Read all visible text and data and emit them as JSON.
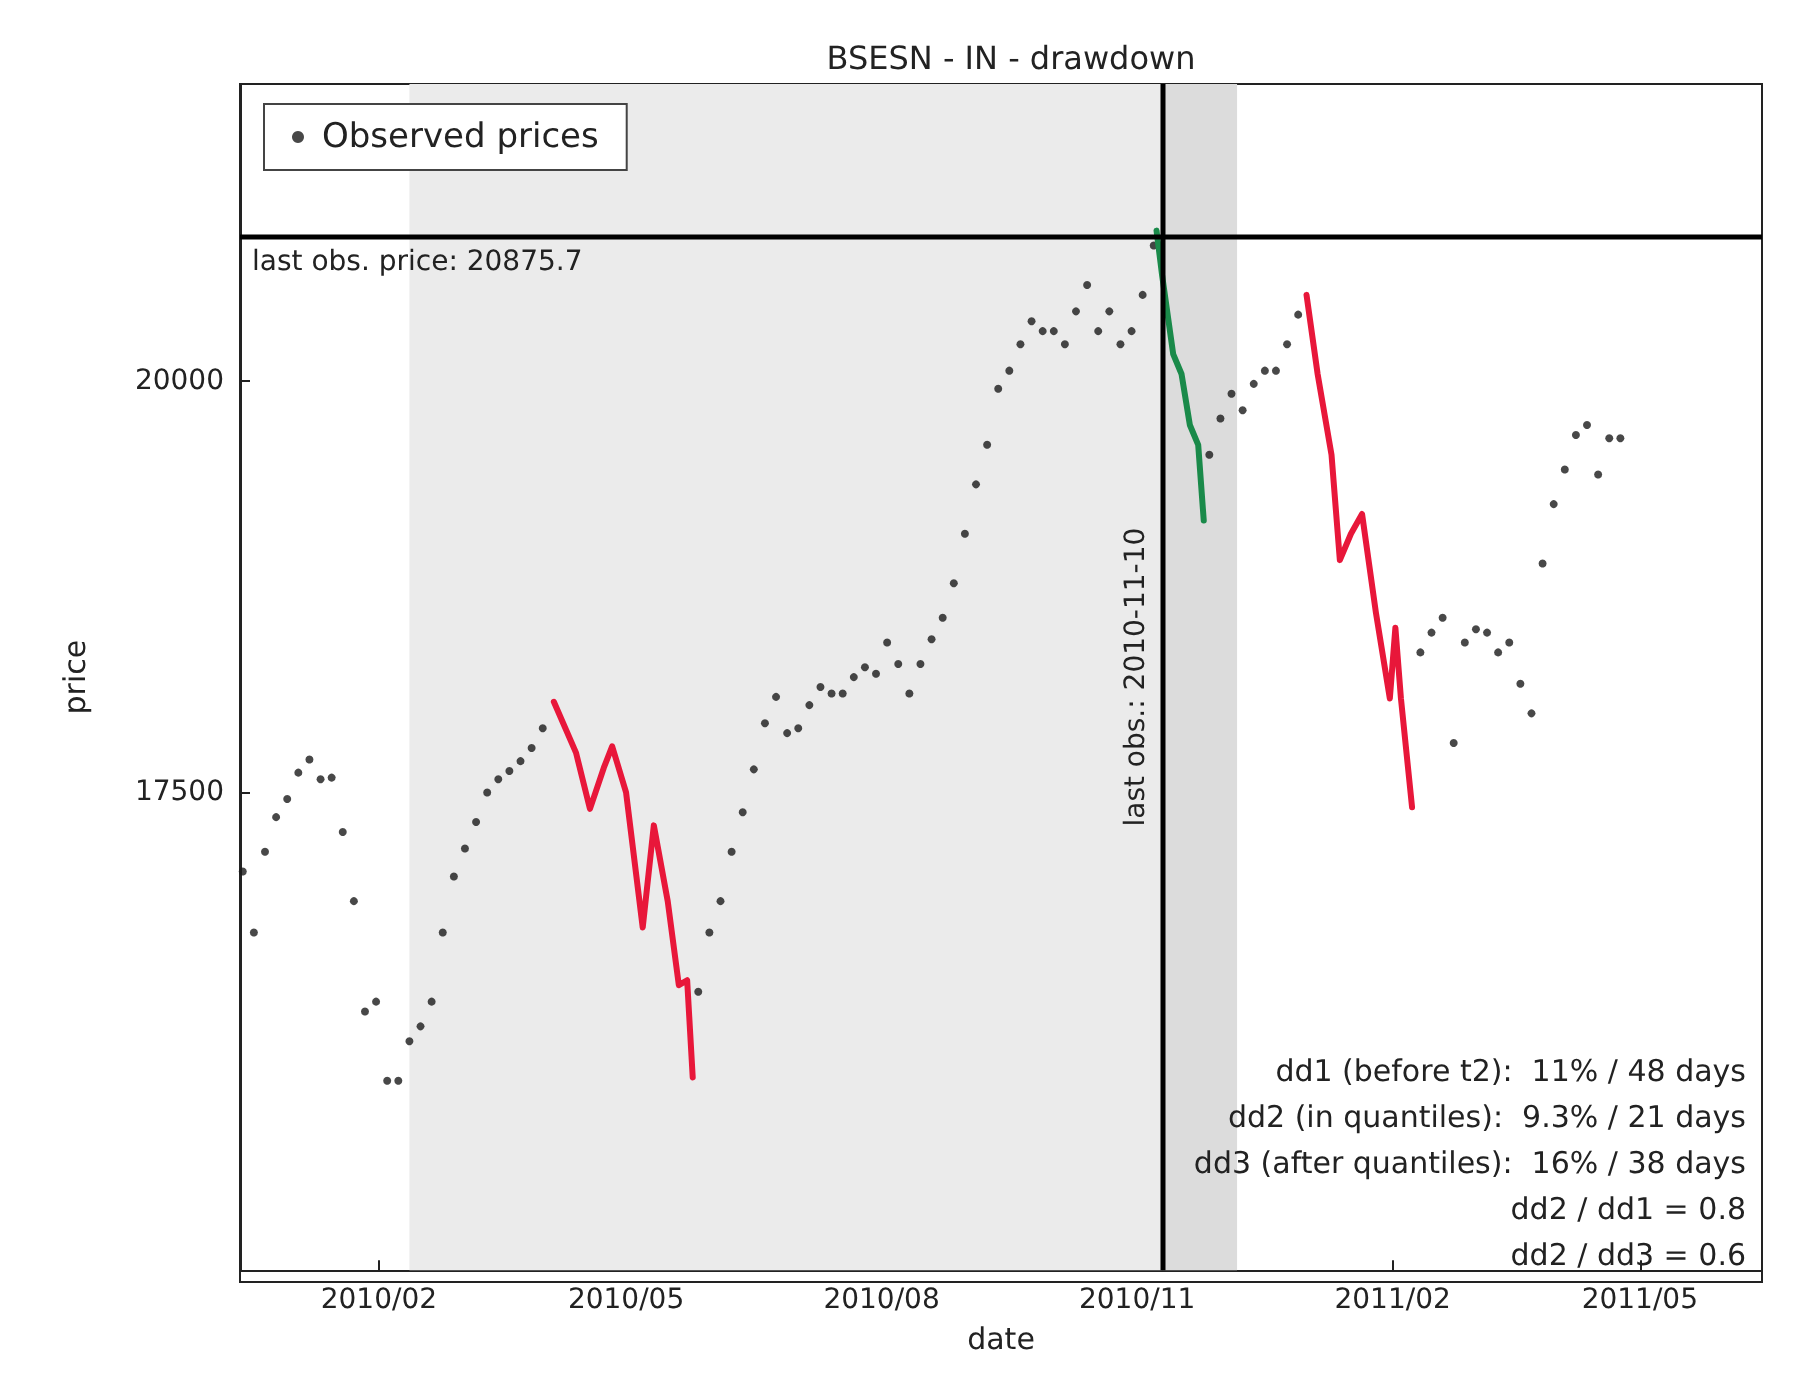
{
  "chart_data": {
    "type": "scatter",
    "title": "BSESN - IN - drawdown",
    "xlabel": "date",
    "ylabel": "price",
    "xlim": [
      "2009-12-13",
      "2011-06-14"
    ],
    "ylim": [
      14600,
      21800
    ],
    "xticks": [
      {
        "value": "2010-02-01",
        "label": "2010/02"
      },
      {
        "value": "2010-05-01",
        "label": "2010/05"
      },
      {
        "value": "2010-08-01",
        "label": "2010/08"
      },
      {
        "value": "2010-11-01",
        "label": "2010/11"
      },
      {
        "value": "2011-02-01",
        "label": "2011/02"
      },
      {
        "value": "2011-05-01",
        "label": "2011/05"
      }
    ],
    "yticks": [
      17500,
      20000
    ],
    "grid": false,
    "legend": "top left",
    "marker": "circle",
    "series": [
      {
        "name": "Observed prices",
        "color": "#1a1a1a",
        "x": [
          "2009-12-14",
          "2009-12-18",
          "2009-12-22",
          "2009-12-26",
          "2009-12-30",
          "2010-01-03",
          "2010-01-07",
          "2010-01-11",
          "2010-01-15",
          "2010-01-19",
          "2010-01-23",
          "2010-01-27",
          "2010-01-31",
          "2010-02-04",
          "2010-02-08",
          "2010-02-12",
          "2010-02-16",
          "2010-02-20",
          "2010-02-24",
          "2010-02-28",
          "2010-03-04",
          "2010-03-08",
          "2010-03-12",
          "2010-03-16",
          "2010-03-20",
          "2010-03-24",
          "2010-03-28",
          "2010-04-01",
          "2010-05-27",
          "2010-05-31",
          "2010-06-04",
          "2010-06-08",
          "2010-06-12",
          "2010-06-16",
          "2010-06-20",
          "2010-06-24",
          "2010-06-28",
          "2010-07-02",
          "2010-07-06",
          "2010-07-10",
          "2010-07-14",
          "2010-07-18",
          "2010-07-22",
          "2010-07-26",
          "2010-07-30",
          "2010-08-03",
          "2010-08-07",
          "2010-08-11",
          "2010-08-15",
          "2010-08-19",
          "2010-08-23",
          "2010-08-27",
          "2010-08-31",
          "2010-09-04",
          "2010-09-08",
          "2010-09-12",
          "2010-09-16",
          "2010-09-20",
          "2010-09-24",
          "2010-09-28",
          "2010-10-02",
          "2010-10-06",
          "2010-10-10",
          "2010-10-14",
          "2010-10-18",
          "2010-10-22",
          "2010-10-26",
          "2010-10-30",
          "2010-11-03",
          "2010-11-07",
          "2010-11-27",
          "2010-12-01",
          "2010-12-05",
          "2010-12-09",
          "2010-12-13",
          "2010-12-17",
          "2010-12-21",
          "2010-12-25",
          "2010-12-29",
          "2011-02-11",
          "2011-02-15",
          "2011-02-19",
          "2011-02-23",
          "2011-02-27",
          "2011-03-03",
          "2011-03-07",
          "2011-03-11",
          "2011-03-15",
          "2011-03-19",
          "2011-03-23",
          "2011-03-27",
          "2011-03-31",
          "2011-04-04",
          "2011-04-08",
          "2011-04-12",
          "2011-04-16",
          "2011-04-20",
          "2011-04-24"
        ],
        "values": [
          17020,
          16650,
          17140,
          17350,
          17460,
          17620,
          17700,
          17580,
          17590,
          17260,
          16840,
          16170,
          16230,
          15750,
          15750,
          15990,
          16080,
          16230,
          16650,
          16990,
          17160,
          17320,
          17500,
          17580,
          17630,
          17690,
          17770,
          17890,
          16290,
          16650,
          16840,
          17140,
          17380,
          17640,
          17920,
          18080,
          17860,
          17890,
          18030,
          18140,
          18100,
          18100,
          18200,
          18260,
          18220,
          18410,
          18280,
          18100,
          18280,
          18430,
          18560,
          18770,
          19070,
          19370,
          19610,
          19950,
          20060,
          20220,
          20360,
          20300,
          20300,
          20220,
          20420,
          20580,
          20300,
          20420,
          20220,
          20300,
          20520,
          20820,
          19550,
          19770,
          19920,
          19820,
          19980,
          20060,
          20060,
          20220,
          20400,
          18350,
          18470,
          18560,
          17800,
          18410,
          18490,
          18470,
          18350,
          18410,
          18160,
          17980,
          18890,
          19250,
          19460,
          19670,
          19730,
          19430,
          19650,
          19650
        ]
      },
      {
        "type": "line",
        "marker": "none",
        "color": "#e8173a",
        "x": [
          "2010-04-05",
          "2010-04-13",
          "2010-04-18",
          "2010-04-23",
          "2010-04-26",
          "2010-05-01",
          "2010-05-07",
          "2010-05-11",
          "2010-05-16",
          "2010-05-20",
          "2010-05-23",
          "2010-05-25"
        ],
        "values": [
          18050,
          17740,
          17400,
          17650,
          17780,
          17500,
          16680,
          17300,
          16840,
          16330,
          16360,
          15770
        ]
      },
      {
        "type": "line",
        "marker": "none",
        "color": "#1a8a4a",
        "x": [
          "2010-11-08",
          "2010-11-10",
          "2010-11-14",
          "2010-11-17",
          "2010-11-20",
          "2010-11-23",
          "2010-11-25"
        ],
        "values": [
          20910,
          20640,
          20160,
          20040,
          19730,
          19610,
          19150
        ]
      },
      {
        "type": "line",
        "marker": "none",
        "color": "#e8173a",
        "x": [
          "2011-01-01",
          "2011-01-05",
          "2011-01-10",
          "2011-01-13",
          "2011-01-17",
          "2011-01-21",
          "2011-01-26",
          "2011-01-31",
          "2011-02-02",
          "2011-02-04",
          "2011-02-08"
        ],
        "values": [
          20520,
          20040,
          19550,
          18910,
          19070,
          19190,
          18590,
          18070,
          18500,
          18070,
          17410
        ]
      }
    ],
    "ref_lines": [
      {
        "axis": "y",
        "value": 20875.7,
        "label": "last obs. price: 20875.7",
        "color": "#000000"
      },
      {
        "axis": "x",
        "value": "2010-11-10",
        "label": "last obs.: 2010-11-10",
        "color": "#000000"
      }
    ],
    "bands": [
      {
        "axis": "x",
        "from": "2010-02-12",
        "to": "2010-11-10",
        "color": "#ebebeb"
      },
      {
        "axis": "x",
        "from": "2010-11-10",
        "to": "2010-12-07",
        "color": "#dcdcdc"
      }
    ],
    "annotations": [
      "dd1 (before t2):  11% / 48 days",
      "dd2 (in quantiles):  9.3% / 21 days",
      "dd3 (after quantiles):  16% / 38 days",
      "dd2 / dd1 = 0.8",
      "dd2 / dd3 = 0.6"
    ]
  }
}
